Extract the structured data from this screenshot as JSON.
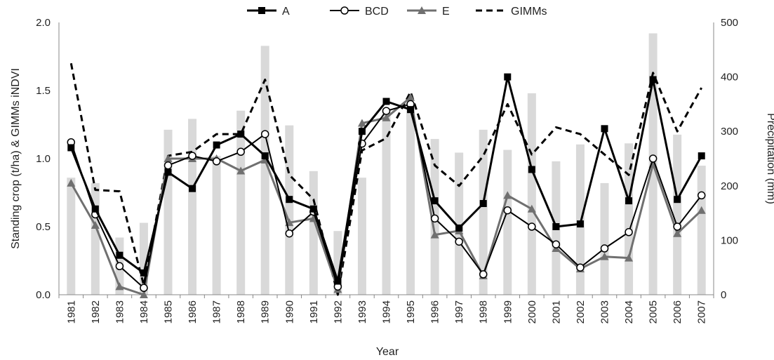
{
  "chart_data": {
    "type": "line",
    "title": "",
    "xlabel": "Year",
    "ylabel": "Standing crop (t/ha) & GIMMs iNDVI",
    "y2label": "Precipitation (mm)",
    "ylim": [
      0,
      2.0
    ],
    "y2lim": [
      0,
      500
    ],
    "yticks": [
      "0.0",
      "0.5",
      "1.0",
      "1.5",
      "2.0"
    ],
    "y2ticks": [
      "0",
      "100",
      "200",
      "300",
      "400",
      "500"
    ],
    "categories": [
      "1981",
      "1982",
      "1983",
      "1984",
      "1985",
      "1986",
      "1987",
      "1988",
      "1989",
      "1990",
      "1991",
      "1992",
      "1993",
      "1994",
      "1995",
      "1996",
      "1997",
      "1998",
      "1999",
      "2000",
      "2001",
      "2002",
      "2003",
      "2004",
      "2005",
      "2006",
      "2007"
    ],
    "grid": false,
    "legend_position": "top",
    "precipitation": {
      "axis": "right",
      "color": "#d9d9d9",
      "values": [
        215,
        205,
        105,
        132,
        303,
        323,
        255,
        338,
        457,
        311,
        227,
        117,
        215,
        341,
        352,
        286,
        261,
        303,
        266,
        370,
        245,
        276,
        205,
        278,
        480,
        294,
        237
      ]
    },
    "series": [
      {
        "name": "A",
        "color": "#000000",
        "marker": "square",
        "dash": "",
        "width": 3,
        "values": [
          1.08,
          0.63,
          0.29,
          0.16,
          0.9,
          0.78,
          1.1,
          1.18,
          1.02,
          0.7,
          0.63,
          0.1,
          1.2,
          1.42,
          1.36,
          0.69,
          0.49,
          0.67,
          1.6,
          0.92,
          0.5,
          0.52,
          1.22,
          0.69,
          1.58,
          0.7,
          1.02
        ]
      },
      {
        "name": "BCD",
        "color": "#000000",
        "marker": "circle",
        "dash": "",
        "width": 2,
        "values": [
          1.12,
          0.59,
          0.21,
          0.05,
          0.95,
          1.02,
          0.98,
          1.05,
          1.18,
          0.45,
          0.61,
          0.06,
          1.11,
          1.35,
          1.4,
          0.56,
          0.39,
          0.15,
          0.62,
          0.5,
          0.37,
          0.2,
          0.34,
          0.46,
          1.0,
          0.5,
          0.73
        ]
      },
      {
        "name": "E",
        "color": "#707070",
        "marker": "triangle",
        "dash": "",
        "width": 3,
        "values": [
          0.82,
          0.51,
          0.06,
          0.0,
          1.0,
          1.0,
          1.0,
          0.91,
          0.99,
          0.53,
          0.56,
          0.04,
          1.26,
          1.3,
          1.45,
          0.44,
          0.47,
          0.14,
          0.73,
          0.63,
          0.34,
          0.19,
          0.28,
          0.27,
          0.96,
          0.45,
          0.62
        ]
      },
      {
        "name": "GIMMs",
        "color": "#000000",
        "marker": "none",
        "dash": "9,6",
        "width": 3,
        "values": [
          1.7,
          0.77,
          0.76,
          0.07,
          1.02,
          1.05,
          1.18,
          1.18,
          1.58,
          0.88,
          0.7,
          0.0,
          1.06,
          1.15,
          1.49,
          0.95,
          0.8,
          1.02,
          1.4,
          1.03,
          1.23,
          1.18,
          1.03,
          0.88,
          1.63,
          1.2,
          1.52
        ]
      }
    ]
  }
}
